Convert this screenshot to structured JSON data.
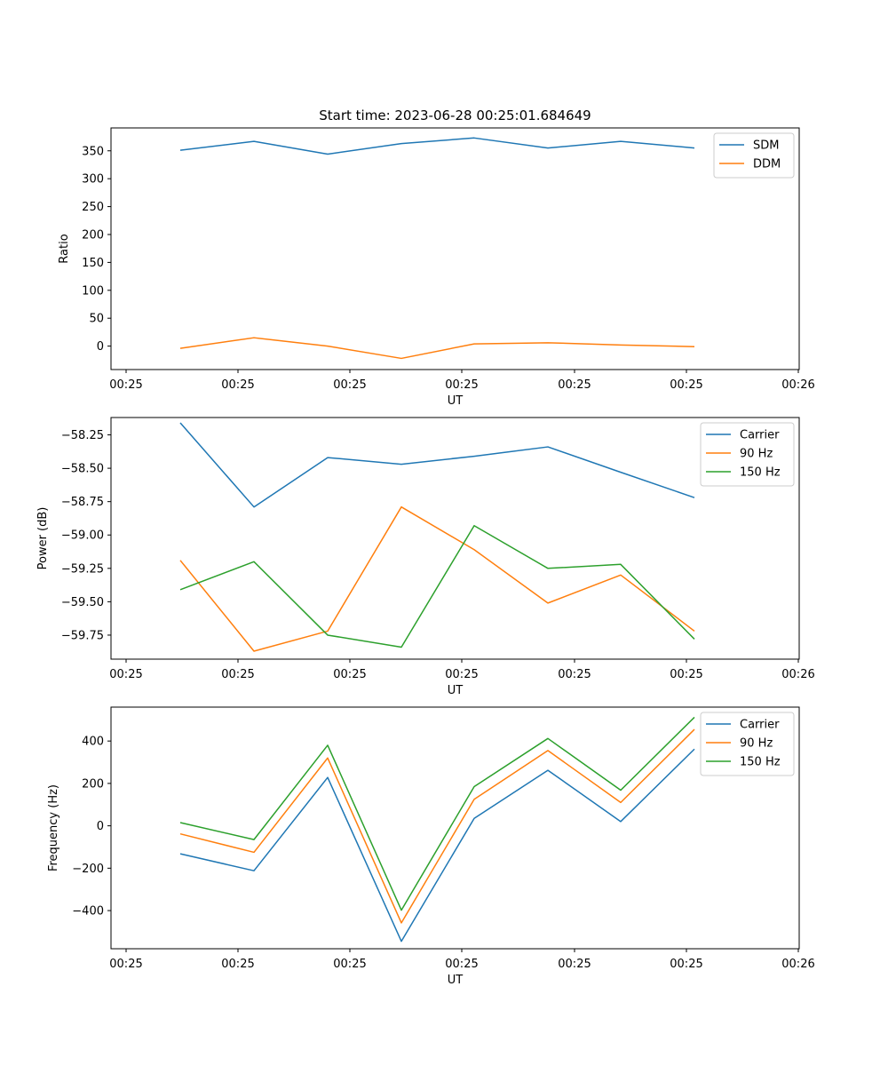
{
  "title": "Start time: 2023-06-28 00:25:01.684649",
  "colors": {
    "blue": "#1f77b4",
    "orange": "#ff7f0e",
    "green": "#2ca02c"
  },
  "chart_data": [
    {
      "type": "line",
      "xlabel": "UT",
      "ylabel": "Ratio",
      "xtick_labels": [
        "00:25",
        "00:25",
        "00:25",
        "00:25",
        "00:25",
        "00:25",
        "00:26"
      ],
      "ylim": [
        -42,
        391
      ],
      "yticks": [
        0,
        50,
        100,
        150,
        200,
        250,
        300,
        350
      ],
      "yticks_labels": [
        "0",
        "50",
        "100",
        "150",
        "200",
        "250",
        "300",
        "350"
      ],
      "grid": false,
      "legend": "top-right",
      "series": [
        {
          "name": "SDM",
          "color": "#1f77b4",
          "values": [
            351,
            367,
            344,
            363,
            373,
            355,
            367,
            355
          ]
        },
        {
          "name": "DDM",
          "color": "#ff7f0e",
          "values": [
            -4,
            15,
            0,
            -22,
            4,
            6,
            2,
            -1
          ]
        }
      ]
    },
    {
      "type": "line",
      "xlabel": "UT",
      "ylabel": "Power (dB)",
      "xtick_labels": [
        "00:25",
        "00:25",
        "00:25",
        "00:25",
        "00:25",
        "00:25",
        "00:26"
      ],
      "ylim": [
        -59.93,
        -58.12
      ],
      "yticks": [
        -58.25,
        -58.5,
        -58.75,
        -59.0,
        -59.25,
        -59.5,
        -59.75
      ],
      "yticks_labels": [
        "−58.25",
        "−58.50",
        "−58.75",
        "−59.00",
        "−59.25",
        "−59.50",
        "−59.75"
      ],
      "grid": false,
      "legend": "top-right",
      "series": [
        {
          "name": "Carrier",
          "color": "#1f77b4",
          "values": [
            -58.16,
            -58.79,
            -58.42,
            -58.47,
            -58.41,
            -58.34,
            -58.53,
            -58.72
          ]
        },
        {
          "name": "90 Hz",
          "color": "#ff7f0e",
          "values": [
            -59.19,
            -59.87,
            -59.72,
            -58.79,
            -59.11,
            -59.51,
            -59.3,
            -59.72
          ]
        },
        {
          "name": "150 Hz",
          "color": "#2ca02c",
          "values": [
            -59.41,
            -59.2,
            -59.75,
            -59.84,
            -58.93,
            -59.25,
            -59.22,
            -59.78
          ]
        }
      ]
    },
    {
      "type": "line",
      "xlabel": "UT",
      "ylabel": "Frequency (Hz)",
      "xtick_labels": [
        "00:25",
        "00:25",
        "00:25",
        "00:25",
        "00:25",
        "00:25",
        "00:26"
      ],
      "ylim": [
        -580,
        560
      ],
      "yticks": [
        -400,
        -200,
        0,
        200,
        400
      ],
      "yticks_labels": [
        "−400",
        "−200",
        "0",
        "200",
        "400"
      ],
      "grid": false,
      "legend": "top-right",
      "series": [
        {
          "name": "Carrier",
          "color": "#1f77b4",
          "values": [
            -132,
            -212,
            228,
            -545,
            35,
            262,
            20,
            362
          ]
        },
        {
          "name": "90 Hz",
          "color": "#ff7f0e",
          "values": [
            -38,
            -125,
            320,
            -458,
            125,
            355,
            110,
            455
          ]
        },
        {
          "name": "150 Hz",
          "color": "#2ca02c",
          "values": [
            15,
            -65,
            380,
            -398,
            185,
            412,
            168,
            512
          ]
        }
      ]
    }
  ]
}
